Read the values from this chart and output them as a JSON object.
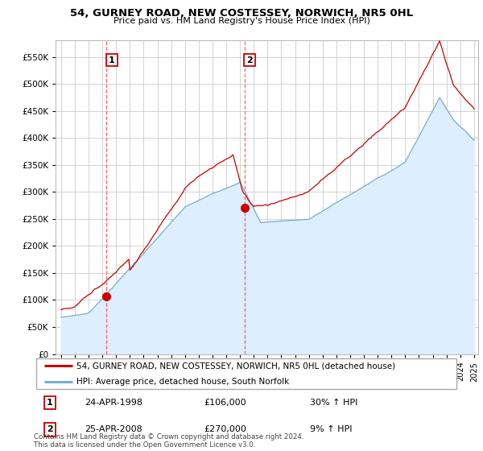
{
  "title": "54, GURNEY ROAD, NEW COSTESSEY, NORWICH, NR5 0HL",
  "subtitle": "Price paid vs. HM Land Registry's House Price Index (HPI)",
  "legend_line1": "54, GURNEY ROAD, NEW COSTESSEY, NORWICH, NR5 0HL (detached house)",
  "legend_line2": "HPI: Average price, detached house, South Norfolk",
  "footnote": "Contains HM Land Registry data © Crown copyright and database right 2024.\nThis data is licensed under the Open Government Licence v3.0.",
  "sale1_date": "24-APR-1998",
  "sale1_price": "£106,000",
  "sale1_hpi": "30% ↑ HPI",
  "sale2_date": "25-APR-2008",
  "sale2_price": "£270,000",
  "sale2_hpi": "9% ↑ HPI",
  "sale1_x": 1998.31,
  "sale1_y": 106000,
  "sale2_x": 2008.32,
  "sale2_y": 270000,
  "ylim": [
    0,
    580000
  ],
  "xlim_left": 1994.6,
  "xlim_right": 2025.3,
  "red_color": "#cc0000",
  "blue_color": "#7aadcc",
  "blue_fill_color": "#ddeeff",
  "vline_color": "#ff6666",
  "bg_color": "#ffffff",
  "grid_color": "#cccccc",
  "yticks": [
    0,
    50000,
    100000,
    150000,
    200000,
    250000,
    300000,
    350000,
    400000,
    450000,
    500000,
    550000
  ]
}
